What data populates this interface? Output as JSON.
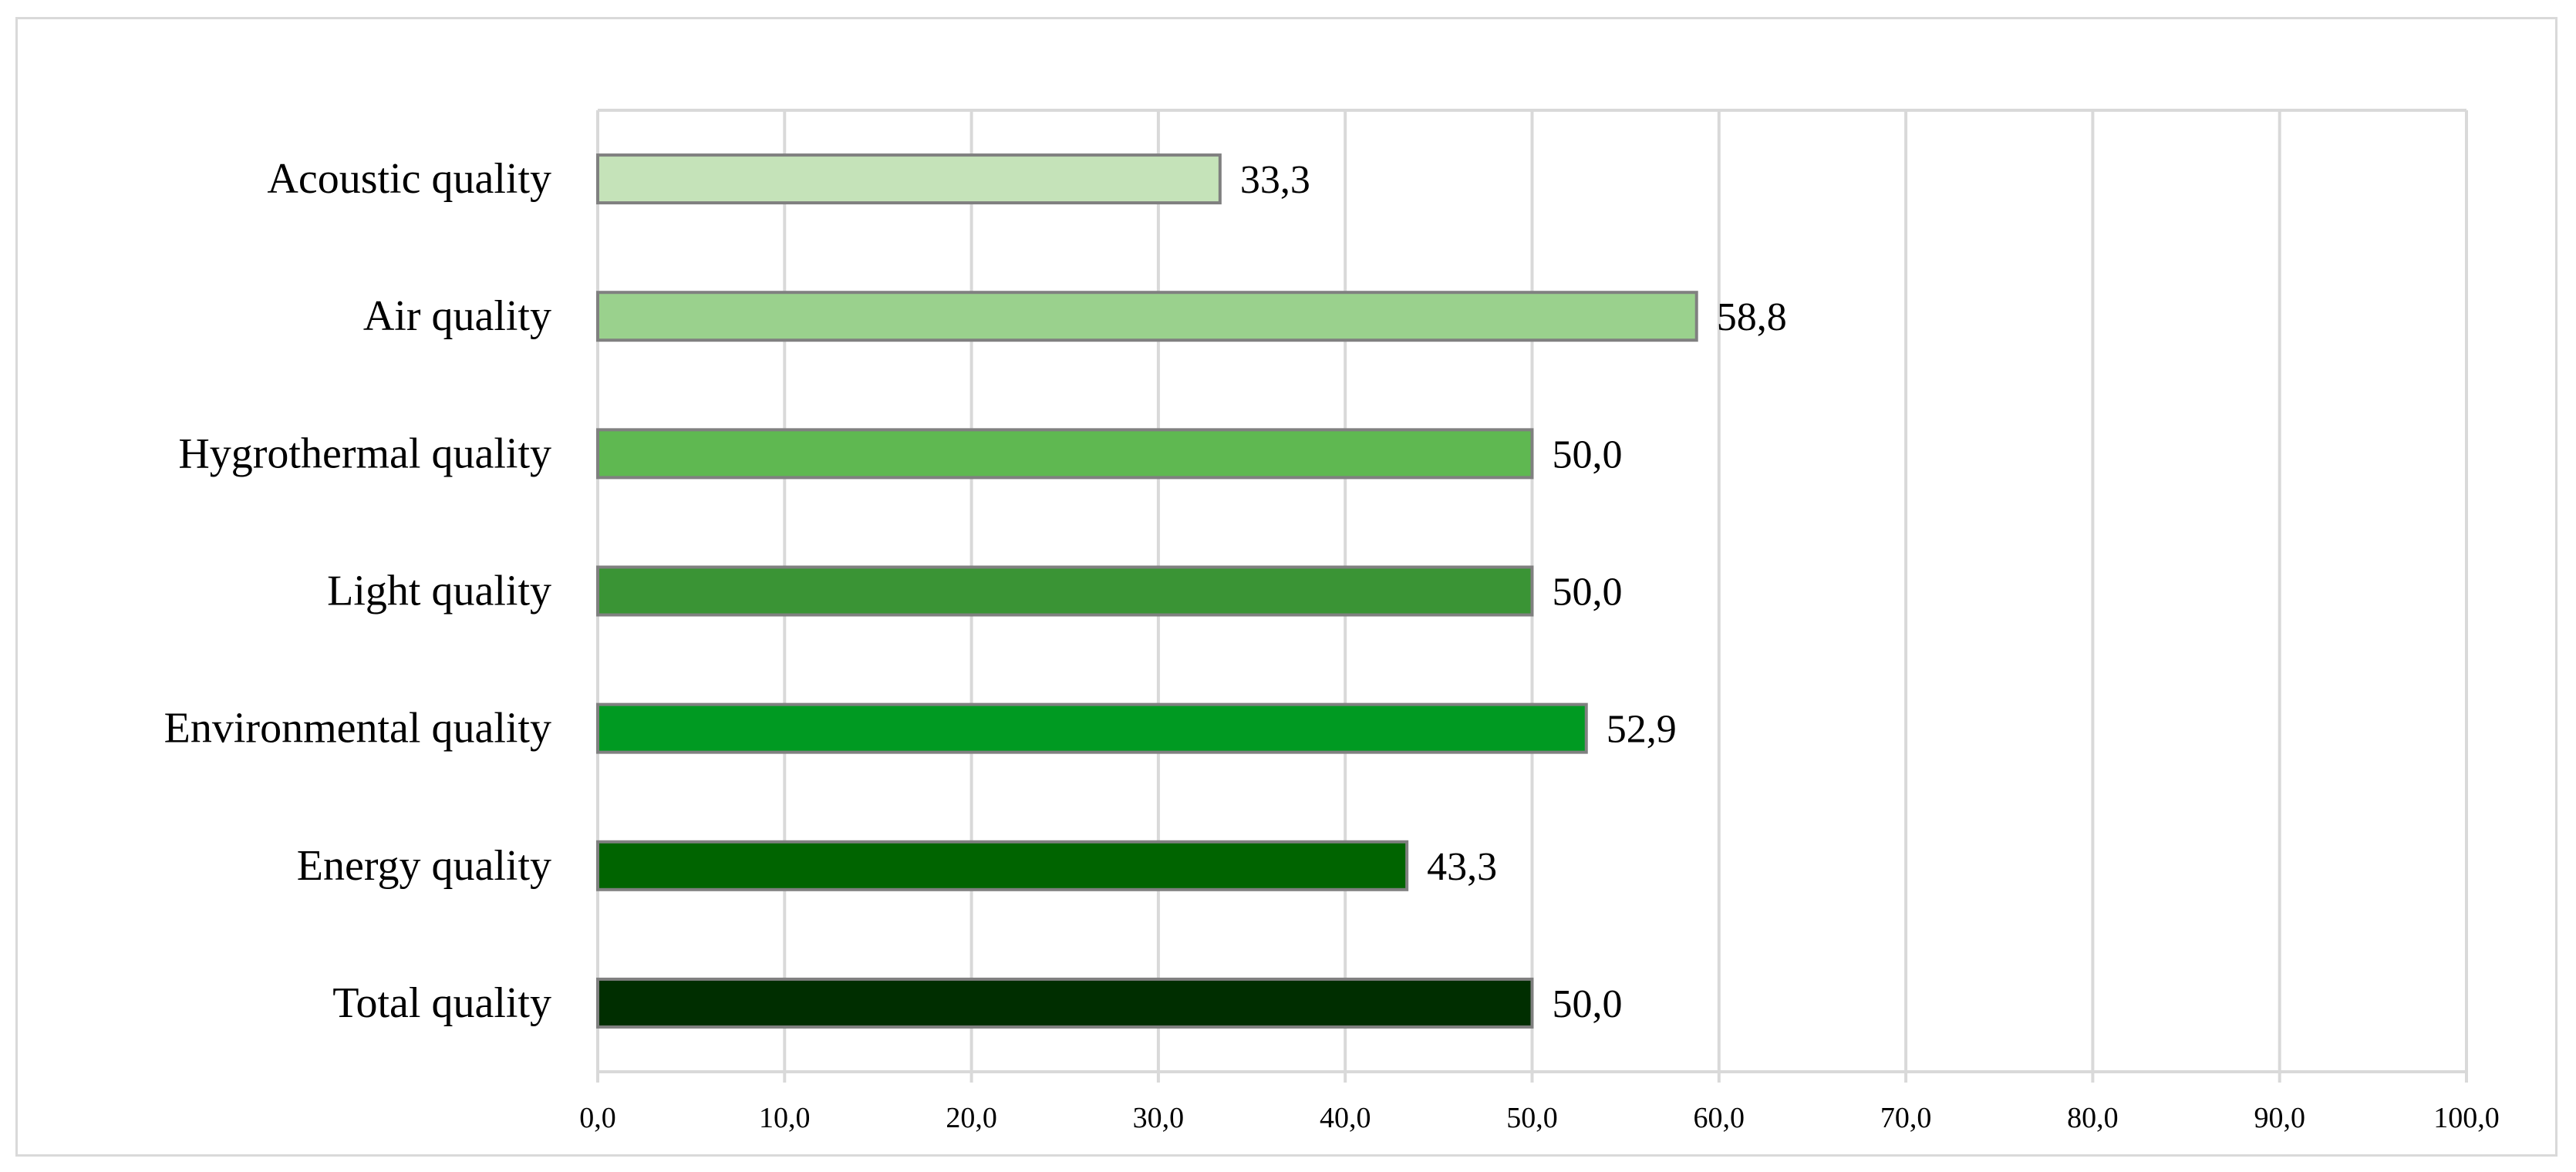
{
  "chart_data": {
    "type": "bar",
    "orientation": "horizontal",
    "categories": [
      "Acoustic quality",
      "Air quality",
      "Hygrothermal quality",
      "Light quality",
      "Environmental quality",
      "Energy quality",
      "Total quality"
    ],
    "values": [
      33.3,
      58.8,
      50.0,
      50.0,
      52.9,
      43.3,
      50.0
    ],
    "value_labels": [
      "33,3",
      "58,8",
      "50,0",
      "50,0",
      "52,9",
      "43,3",
      "50,0"
    ],
    "bar_colors": [
      "#c5e3b9",
      "#9ad18d",
      "#5fb851",
      "#3a9435",
      "#009a22",
      "#006400",
      "#002e00"
    ],
    "bar_outline_color": "#808080",
    "xlim": [
      0,
      100
    ],
    "x_ticks": [
      0,
      10,
      20,
      30,
      40,
      50,
      60,
      70,
      80,
      90,
      100
    ],
    "x_tick_labels": [
      "0,0",
      "10,0",
      "20,0",
      "30,0",
      "40,0",
      "50,0",
      "60,0",
      "70,0",
      "80,0",
      "90,0",
      "100,0"
    ],
    "grid": "vertical",
    "grid_color": "#d9d9d9",
    "legend": "none",
    "title": "",
    "xlabel": "",
    "ylabel": ""
  }
}
